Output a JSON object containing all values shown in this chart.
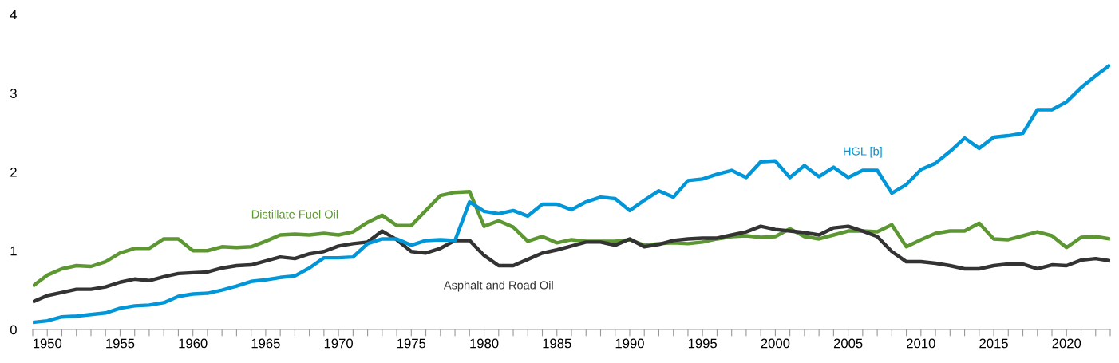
{
  "chart_data": {
    "type": "line",
    "x": [
      1949,
      1950,
      1951,
      1952,
      1953,
      1954,
      1955,
      1956,
      1957,
      1958,
      1959,
      1960,
      1961,
      1962,
      1963,
      1964,
      1965,
      1966,
      1967,
      1968,
      1969,
      1970,
      1971,
      1972,
      1973,
      1974,
      1975,
      1976,
      1977,
      1978,
      1979,
      1980,
      1981,
      1982,
      1983,
      1984,
      1985,
      1986,
      1987,
      1988,
      1989,
      1990,
      1991,
      1992,
      1993,
      1994,
      1995,
      1996,
      1997,
      1998,
      1999,
      2000,
      2001,
      2002,
      2003,
      2004,
      2005,
      2006,
      2007,
      2008,
      2009,
      2010,
      2011,
      2012,
      2013,
      2014,
      2015,
      2016,
      2017,
      2018,
      2019,
      2020,
      2021,
      2022,
      2023
    ],
    "series": [
      {
        "name": "Distillate Fuel Oil",
        "color": "#5d9732",
        "values": [
          0.55,
          0.69,
          0.77,
          0.81,
          0.8,
          0.86,
          0.97,
          1.03,
          1.03,
          1.15,
          1.15,
          1.0,
          1.0,
          1.05,
          1.04,
          1.05,
          1.12,
          1.2,
          1.21,
          1.2,
          1.22,
          1.2,
          1.24,
          1.36,
          1.45,
          1.32,
          1.32,
          1.51,
          1.7,
          1.74,
          1.75,
          1.31,
          1.38,
          1.3,
          1.12,
          1.18,
          1.1,
          1.14,
          1.12,
          1.12,
          1.12,
          1.14,
          1.07,
          1.09,
          1.1,
          1.09,
          1.11,
          1.15,
          1.18,
          1.19,
          1.17,
          1.18,
          1.28,
          1.18,
          1.15,
          1.2,
          1.25,
          1.25,
          1.24,
          1.33,
          1.05,
          1.14,
          1.22,
          1.25,
          1.25,
          1.35,
          1.15,
          1.14,
          1.19,
          1.24,
          1.19,
          1.04,
          1.17,
          1.18,
          1.15
        ]
      },
      {
        "name": "Asphalt and Road Oil",
        "color": "#333333",
        "values": [
          0.35,
          0.43,
          0.47,
          0.51,
          0.51,
          0.54,
          0.6,
          0.64,
          0.62,
          0.67,
          0.71,
          0.72,
          0.73,
          0.78,
          0.81,
          0.82,
          0.87,
          0.92,
          0.9,
          0.96,
          0.99,
          1.06,
          1.09,
          1.11,
          1.25,
          1.14,
          0.99,
          0.97,
          1.03,
          1.13,
          1.13,
          0.94,
          0.81,
          0.81,
          0.89,
          0.97,
          1.01,
          1.06,
          1.11,
          1.11,
          1.07,
          1.15,
          1.05,
          1.08,
          1.13,
          1.15,
          1.16,
          1.16,
          1.2,
          1.24,
          1.31,
          1.27,
          1.25,
          1.23,
          1.2,
          1.29,
          1.31,
          1.25,
          1.18,
          0.99,
          0.86,
          0.86,
          0.84,
          0.81,
          0.77,
          0.77,
          0.81,
          0.83,
          0.83,
          0.77,
          0.82,
          0.81,
          0.88,
          0.9,
          0.87
        ]
      },
      {
        "name": "HGL [b]",
        "color": "#0096d7",
        "values": [
          0.09,
          0.11,
          0.16,
          0.17,
          0.19,
          0.21,
          0.27,
          0.3,
          0.31,
          0.34,
          0.42,
          0.45,
          0.46,
          0.5,
          0.55,
          0.61,
          0.63,
          0.66,
          0.68,
          0.78,
          0.91,
          0.91,
          0.92,
          1.09,
          1.15,
          1.15,
          1.07,
          1.13,
          1.14,
          1.13,
          1.62,
          1.5,
          1.47,
          1.51,
          1.44,
          1.59,
          1.59,
          1.52,
          1.62,
          1.68,
          1.66,
          1.51,
          1.64,
          1.76,
          1.68,
          1.89,
          1.91,
          1.97,
          2.02,
          1.93,
          2.13,
          2.14,
          1.93,
          2.08,
          1.94,
          2.06,
          1.93,
          2.02,
          2.02,
          1.73,
          1.84,
          2.03,
          2.11,
          2.26,
          2.43,
          2.3,
          2.44,
          2.46,
          2.49,
          2.79,
          2.79,
          2.89,
          3.07,
          3.22,
          3.36
        ]
      }
    ],
    "xlim": [
      1949,
      2023
    ],
    "xticks": [
      {
        "value": 1949,
        "label": null
      },
      {
        "value": 1950,
        "label": "1950"
      },
      {
        "value": 1951,
        "label": null
      },
      {
        "value": 1952,
        "label": null
      },
      {
        "value": 1953,
        "label": null
      },
      {
        "value": 1954,
        "label": null
      },
      {
        "value": 1955,
        "label": "1955"
      },
      {
        "value": 1956,
        "label": null
      },
      {
        "value": 1957,
        "label": null
      },
      {
        "value": 1958,
        "label": null
      },
      {
        "value": 1959,
        "label": null
      },
      {
        "value": 1960,
        "label": "1960"
      },
      {
        "value": 1961,
        "label": null
      },
      {
        "value": 1962,
        "label": null
      },
      {
        "value": 1963,
        "label": null
      },
      {
        "value": 1964,
        "label": null
      },
      {
        "value": 1965,
        "label": "1965"
      },
      {
        "value": 1966,
        "label": null
      },
      {
        "value": 1967,
        "label": null
      },
      {
        "value": 1968,
        "label": null
      },
      {
        "value": 1969,
        "label": null
      },
      {
        "value": 1970,
        "label": "1970"
      },
      {
        "value": 1971,
        "label": null
      },
      {
        "value": 1972,
        "label": null
      },
      {
        "value": 1973,
        "label": null
      },
      {
        "value": 1974,
        "label": null
      },
      {
        "value": 1975,
        "label": "1975"
      },
      {
        "value": 1976,
        "label": null
      },
      {
        "value": 1977,
        "label": null
      },
      {
        "value": 1978,
        "label": null
      },
      {
        "value": 1979,
        "label": null
      },
      {
        "value": 1980,
        "label": "1980"
      },
      {
        "value": 1981,
        "label": null
      },
      {
        "value": 1982,
        "label": null
      },
      {
        "value": 1983,
        "label": null
      },
      {
        "value": 1984,
        "label": null
      },
      {
        "value": 1985,
        "label": "1985"
      },
      {
        "value": 1986,
        "label": null
      },
      {
        "value": 1987,
        "label": null
      },
      {
        "value": 1988,
        "label": null
      },
      {
        "value": 1989,
        "label": null
      },
      {
        "value": 1990,
        "label": "1990"
      },
      {
        "value": 1991,
        "label": null
      },
      {
        "value": 1992,
        "label": null
      },
      {
        "value": 1993,
        "label": null
      },
      {
        "value": 1994,
        "label": null
      },
      {
        "value": 1995,
        "label": "1995"
      },
      {
        "value": 1996,
        "label": null
      },
      {
        "value": 1997,
        "label": null
      },
      {
        "value": 1998,
        "label": null
      },
      {
        "value": 1999,
        "label": null
      },
      {
        "value": 2000,
        "label": "2000"
      },
      {
        "value": 2001,
        "label": null
      },
      {
        "value": 2002,
        "label": null
      },
      {
        "value": 2003,
        "label": null
      },
      {
        "value": 2004,
        "label": null
      },
      {
        "value": 2005,
        "label": "2005"
      },
      {
        "value": 2006,
        "label": null
      },
      {
        "value": 2007,
        "label": null
      },
      {
        "value": 2008,
        "label": null
      },
      {
        "value": 2009,
        "label": null
      },
      {
        "value": 2010,
        "label": "2010"
      },
      {
        "value": 2011,
        "label": null
      },
      {
        "value": 2012,
        "label": null
      },
      {
        "value": 2013,
        "label": null
      },
      {
        "value": 2014,
        "label": null
      },
      {
        "value": 2015,
        "label": "2015"
      },
      {
        "value": 2016,
        "label": null
      },
      {
        "value": 2017,
        "label": null
      },
      {
        "value": 2018,
        "label": null
      },
      {
        "value": 2019,
        "label": null
      },
      {
        "value": 2020,
        "label": "2020"
      },
      {
        "value": 2021,
        "label": null
      },
      {
        "value": 2022,
        "label": null
      },
      {
        "value": 2023,
        "label": null
      }
    ],
    "ylim": [
      0,
      4
    ],
    "yticks": [
      0,
      1,
      2,
      3,
      4
    ],
    "grid": false,
    "line_style": "solid"
  }
}
